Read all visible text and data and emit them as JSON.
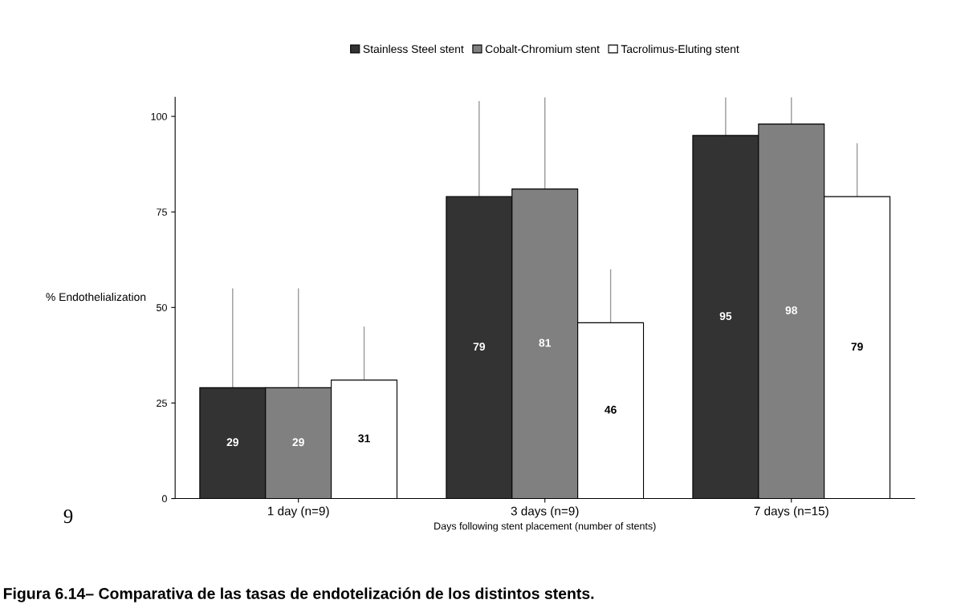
{
  "chart_data": {
    "type": "bar",
    "ylabel": "% Endothelialization",
    "xlabel": "Days following stent placement (number of stents)",
    "categories": [
      "1 day (n=9)",
      "3 days (n=9)",
      "7 days (n=15)"
    ],
    "series": [
      {
        "name": "Stainless Steel stent",
        "color": "#333333",
        "values": [
          29,
          79,
          95
        ],
        "errors": [
          [
            29,
            55
          ],
          [
            79,
            104
          ],
          [
            95,
            105
          ]
        ]
      },
      {
        "name": "Cobalt-Chromium stent",
        "color": "#808080",
        "values": [
          29,
          81,
          98
        ],
        "errors": [
          [
            29,
            55
          ],
          [
            81,
            105
          ],
          [
            98,
            105
          ]
        ]
      },
      {
        "name": "Tacrolimus-Eluting stent",
        "color": "#ffffff",
        "values": [
          31,
          46,
          79
        ],
        "errors": [
          [
            31,
            45
          ],
          [
            46,
            60
          ],
          [
            79,
            93
          ]
        ]
      }
    ],
    "ylim": [
      0,
      105
    ],
    "yticks": [
      0,
      25,
      50,
      75,
      100
    ],
    "grid": false,
    "legend": "top",
    "data_labels": true,
    "annotations": [
      "9",
      "Figura 6.14– Comparativa de las tasas de endotelización de los distintos stents."
    ]
  }
}
